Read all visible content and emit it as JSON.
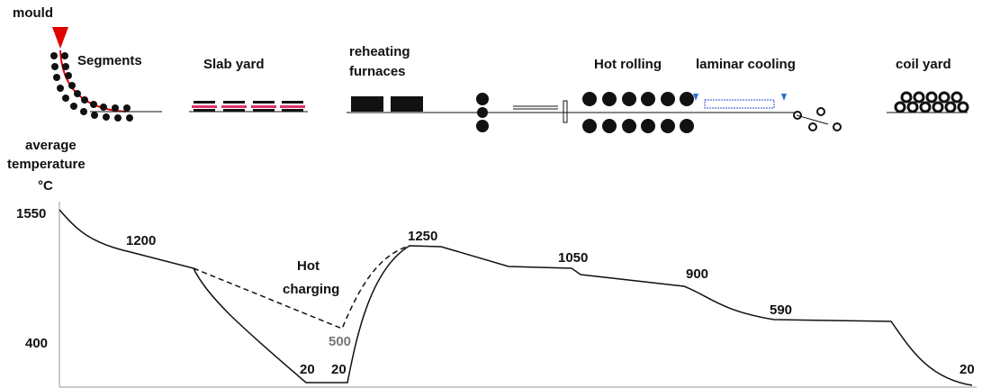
{
  "stages": [
    {
      "label": [
        "mould"
      ]
    },
    {
      "label": [
        "Segments"
      ]
    },
    {
      "label": [
        "Slab yard"
      ]
    },
    {
      "label": [
        "reheating",
        "furnaces"
      ]
    },
    {
      "label": [
        "Hot rolling"
      ]
    },
    {
      "label": [
        "laminar cooling"
      ]
    },
    {
      "label": [
        "coil yard"
      ]
    }
  ],
  "axis_label": [
    "average",
    "temperature",
    "°C"
  ],
  "annotation": [
    "Hot",
    "charging"
  ],
  "temperatures": [
    "1550",
    "1200",
    "400",
    "500",
    "20",
    "20",
    "1250",
    "1050",
    "900",
    "590",
    "20"
  ]
}
